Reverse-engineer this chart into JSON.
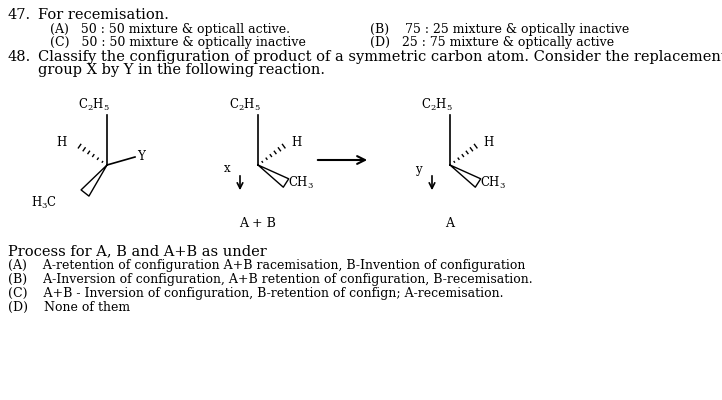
{
  "bg_color": "#ffffff",
  "text_color": "#1a1aff",
  "dark_color": "#000000",
  "figsize": [
    7.22,
    4.0
  ],
  "dpi": 100,
  "font_family": "DejaVu Serif",
  "fs_main": 10.5,
  "fs_small": 9.0,
  "fs_chem": 8.5,
  "q47_num": "47.",
  "q47_text": "For recemisation.",
  "q47_A": "(A)   50 : 50 mixture & opticall active.",
  "q47_B": "(B)    75 : 25 mixture & optically inactive",
  "q47_C": "(C)   50 : 50 mixture & optically inactive",
  "q47_D": "(D)   25 : 75 mixture & optically active",
  "q48_num": "48.",
  "q48_text": "Classify the configuration of product of a symmetric carbon atom. Consider the replacement of a",
  "q48_text2": "group X by Y in the following reaction.",
  "process_text": "Process for A, B and A+B as under",
  "ans_A": "(A)    A-retention of configuration A+B racemisation, B-Invention of configuration",
  "ans_B": "(B)    A-Inversion of configuration, A+B retention of configuration, B-recemisation.",
  "ans_C": "(C)    A+B - Inversion of configuration, B-retention of confign; A-recemisation.",
  "ans_D": "(D)    None of them"
}
